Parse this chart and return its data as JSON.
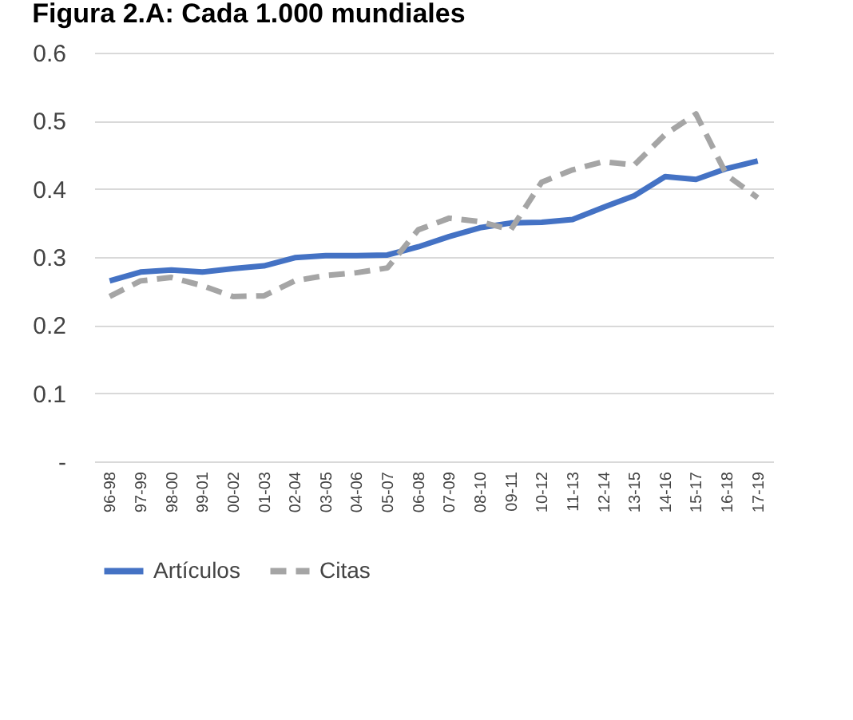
{
  "chart_data": {
    "type": "line",
    "title": "Figura 2.A: Cada 1.000 mundiales",
    "categories": [
      "96-98",
      "97-99",
      "98-00",
      "99-01",
      "00-02",
      "01-03",
      "02-04",
      "03-05",
      "04-06",
      "05-07",
      "06-08",
      "07-09",
      "08-10",
      "09-11",
      "10-12",
      "11-13",
      "12-14",
      "13-15",
      "14-16",
      "15-17",
      "16-18",
      "17-19"
    ],
    "series": [
      {
        "name": "Artículos",
        "color": "#4472c4",
        "line_style": "solid",
        "values": [
          0.265,
          0.278,
          0.281,
          0.278,
          0.283,
          0.287,
          0.299,
          0.302,
          0.302,
          0.303,
          0.315,
          0.33,
          0.343,
          0.35,
          0.351,
          0.355,
          0.373,
          0.39,
          0.418,
          0.414,
          0.43,
          0.441
        ]
      },
      {
        "name": "Citas",
        "color": "#a5a5a5",
        "line_style": "dashed",
        "values": [
          0.242,
          0.265,
          0.27,
          0.258,
          0.242,
          0.243,
          0.265,
          0.273,
          0.277,
          0.284,
          0.34,
          0.357,
          0.352,
          0.34,
          0.41,
          0.428,
          0.44,
          0.435,
          0.48,
          0.51,
          0.42,
          0.387
        ]
      }
    ],
    "ylim": [
      0,
      0.6
    ],
    "yticks": [
      {
        "value": 0,
        "label": "-"
      },
      0.1,
      0.2,
      0.3,
      0.4,
      0.5,
      0.6
    ],
    "grid": "y",
    "legend": "bottom",
    "marker": "none"
  }
}
